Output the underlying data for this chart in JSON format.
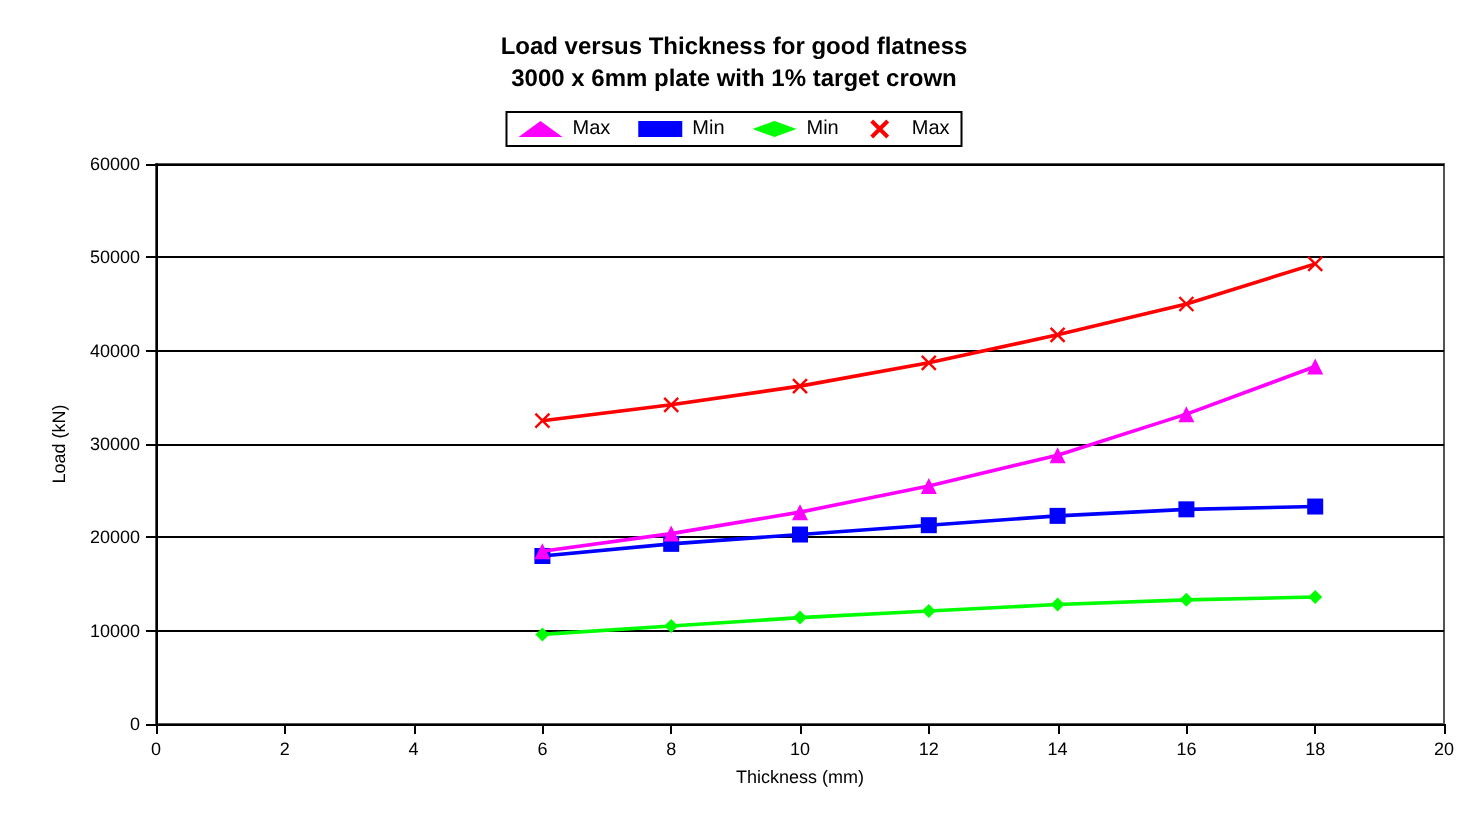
{
  "chart_data": {
    "type": "line",
    "title": "Load versus Thickness for good flatness",
    "subtitle": "3000 x 6mm plate with 1% target crown",
    "xlabel": "Thickness (mm)",
    "ylabel": "Load (kN)",
    "x": [
      6,
      8,
      10,
      12,
      14,
      16,
      18
    ],
    "series": [
      {
        "name": "Max",
        "color": "#ff00ff",
        "marker": "triangle",
        "values": [
          18500,
          20400,
          22700,
          25500,
          28800,
          33200,
          38300
        ]
      },
      {
        "name": "Min",
        "color": "#0000ff",
        "marker": "square",
        "values": [
          18000,
          19300,
          20300,
          21300,
          22300,
          23000,
          23300
        ]
      },
      {
        "name": "Min",
        "color": "#00ff00",
        "marker": "diamond",
        "values": [
          9600,
          10500,
          11400,
          12100,
          12800,
          13300,
          13600
        ]
      },
      {
        "name": "Max",
        "color": "#ff0000",
        "marker": "cross",
        "values": [
          32500,
          34200,
          36200,
          38700,
          41700,
          45000,
          49300
        ]
      }
    ],
    "xlim": [
      0,
      20
    ],
    "xticks": [
      0,
      2,
      4,
      6,
      8,
      10,
      12,
      14,
      16,
      18,
      20
    ],
    "ylim": [
      0,
      60000
    ],
    "yticks": [
      0,
      10000,
      20000,
      30000,
      40000,
      50000,
      60000
    ],
    "grid": "y",
    "legend": "top"
  }
}
